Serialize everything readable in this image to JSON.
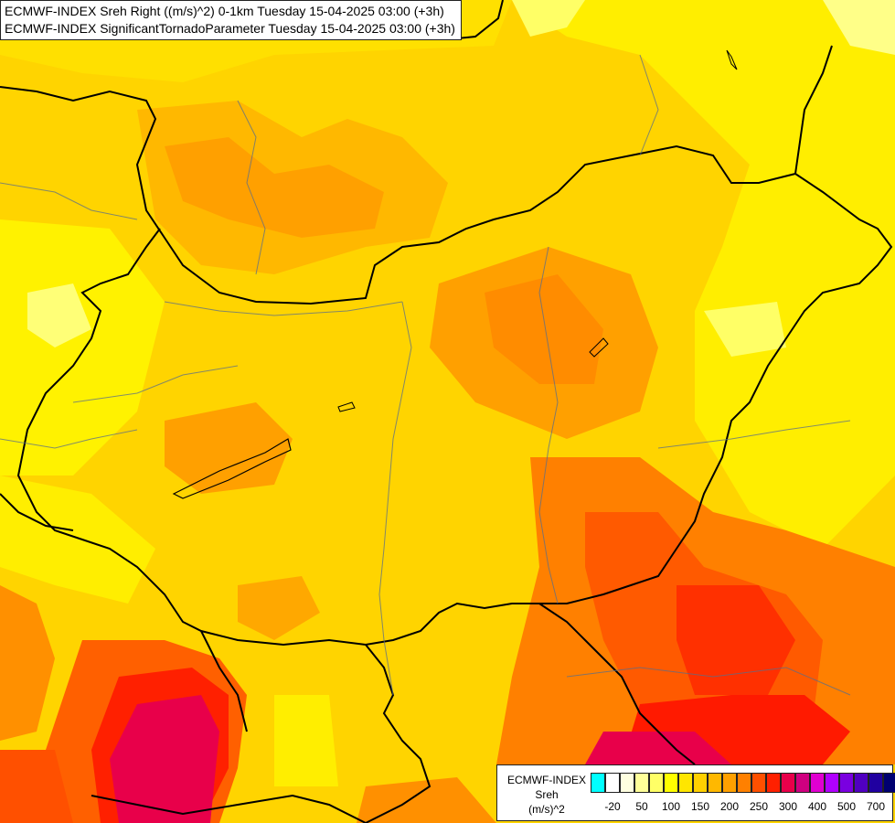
{
  "title": {
    "line1": "ECMWF-INDEX Sreh Right ((m/s)^2) 0-1km Tuesday 15-04-2025 03:00 (+3h)",
    "line2": "ECMWF-INDEX SignificantTornadoParameter Tuesday 15-04-2025 03:00 (+3h)"
  },
  "legend": {
    "name_line1": "ECMWF-INDEX",
    "name_line2": "Sreh",
    "name_line3": "(m/s)^2",
    "colors": [
      "#00ffff",
      "#ffffff",
      "#ffffe0",
      "#ffff99",
      "#ffff66",
      "#ffff00",
      "#ffe600",
      "#ffd000",
      "#ffb800",
      "#ffa000",
      "#ff8000",
      "#ff5000",
      "#ff2000",
      "#e8004a",
      "#d00080",
      "#e000d0",
      "#b000ff",
      "#7a00e0",
      "#5000c0",
      "#2000a0",
      "#000070"
    ],
    "ticks": [
      "-20",
      "50",
      "100",
      "150",
      "200",
      "250",
      "300",
      "400",
      "500",
      "700"
    ]
  }
}
